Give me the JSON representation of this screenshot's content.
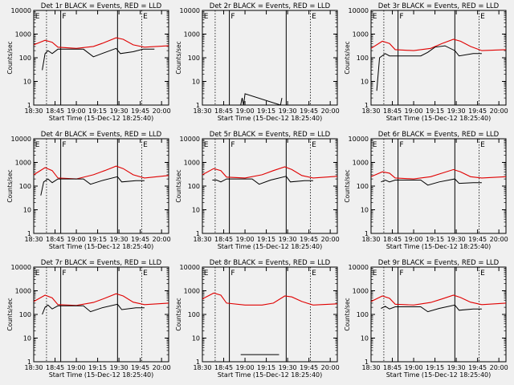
{
  "figure": {
    "colors": {
      "events": "#000000",
      "lld": "#e00000",
      "background": "#f0f0f0"
    },
    "x_tick_labels": [
      "18:30",
      "18:45",
      "19:00",
      "19:15",
      "19:30",
      "19:45",
      "20:00"
    ],
    "x_label": "Start Time (15-Dec-12 18:25:40)",
    "y_label": "Counts/sec",
    "marker_letters": [
      "E",
      "F",
      "E"
    ]
  },
  "chart_data": [
    {
      "type": "line",
      "title": "Det 1r BLACK = Events, RED = LLD",
      "xlabel": "Start Time (15-Dec-12 18:25:40)",
      "ylabel": "Counts/sec",
      "x_unit": "HH:MM",
      "y_scale": "log",
      "yticks": [
        "1",
        "10",
        "100",
        "1000",
        "10000"
      ],
      "series": [
        {
          "name": "Events",
          "color": "#000000",
          "x": [
            "18:36",
            "18:38",
            "18:40",
            "18:43",
            "18:47",
            "18:50",
            "19:05",
            "19:12",
            "19:18",
            "19:28",
            "19:31",
            "19:40",
            "19:47",
            "19:55"
          ],
          "y": [
            30,
            150,
            200,
            150,
            230,
            230,
            230,
            110,
            150,
            250,
            150,
            180,
            230,
            230
          ]
        },
        {
          "name": "LLD",
          "color": "#e00000",
          "x": [
            "18:30",
            "18:38",
            "18:43",
            "18:47",
            "19:00",
            "19:12",
            "19:18",
            "19:28",
            "19:33",
            "19:40",
            "19:48",
            "20:05"
          ],
          "y": [
            350,
            550,
            450,
            280,
            250,
            300,
            400,
            700,
            600,
            350,
            280,
            320
          ]
        }
      ]
    },
    {
      "type": "line",
      "title": "Det 2r BLACK = Events, RED = LLD",
      "xlabel": "Start Time (15-Dec-12 18:25:40)",
      "ylabel": "Counts/sec",
      "x_unit": "HH:MM",
      "y_scale": "log",
      "yticks": [
        "1",
        "10",
        "100",
        "1000",
        "10000"
      ],
      "series": [
        {
          "name": "Events",
          "color": "#000000",
          "x": [
            "18:57",
            "18:58",
            "18:59",
            "19:00",
            "19:25",
            "19:26"
          ],
          "y": [
            1,
            2,
            1,
            3,
            1,
            2
          ]
        }
      ]
    },
    {
      "type": "line",
      "title": "Det 3r BLACK = Events, RED = LLD",
      "xlabel": "Start Time (15-Dec-12 18:25:40)",
      "ylabel": "Counts/sec",
      "x_unit": "HH:MM",
      "y_scale": "log",
      "yticks": [
        "1",
        "10",
        "100",
        "1000",
        "10000"
      ],
      "series": [
        {
          "name": "Events",
          "color": "#000000",
          "x": [
            "18:34",
            "18:36",
            "18:40",
            "18:43",
            "18:47",
            "19:05",
            "19:10",
            "19:15",
            "19:22",
            "19:29",
            "19:32",
            "19:42",
            "19:48"
          ],
          "y": [
            4,
            100,
            150,
            120,
            120,
            120,
            170,
            280,
            320,
            200,
            120,
            150,
            150
          ]
        },
        {
          "name": "LLD",
          "color": "#e00000",
          "x": [
            "18:30",
            "18:38",
            "18:43",
            "18:47",
            "19:00",
            "19:12",
            "19:20",
            "19:28",
            "19:33",
            "19:40",
            "19:48",
            "20:05"
          ],
          "y": [
            250,
            500,
            400,
            220,
            200,
            250,
            400,
            600,
            500,
            300,
            200,
            220
          ]
        }
      ]
    },
    {
      "type": "line",
      "title": "Det 4r BLACK = Events, RED = LLD",
      "xlabel": "Start Time (15-Dec-12 18:25:40)",
      "ylabel": "Counts/sec",
      "x_unit": "HH:MM",
      "y_scale": "log",
      "yticks": [
        "1",
        "10",
        "100",
        "1000",
        "10000"
      ],
      "series": [
        {
          "name": "Events",
          "color": "#000000",
          "x": [
            "18:35",
            "18:37",
            "18:40",
            "18:43",
            "18:47",
            "19:05",
            "19:10",
            "19:18",
            "19:29",
            "19:32",
            "19:42",
            "19:48"
          ],
          "y": [
            40,
            150,
            200,
            140,
            200,
            200,
            120,
            170,
            250,
            150,
            170,
            170
          ]
        },
        {
          "name": "LLD",
          "color": "#e00000",
          "x": [
            "18:30",
            "18:38",
            "18:43",
            "18:47",
            "19:00",
            "19:12",
            "19:20",
            "19:28",
            "19:33",
            "19:40",
            "19:48",
            "20:05"
          ],
          "y": [
            300,
            600,
            450,
            220,
            200,
            300,
            450,
            700,
            550,
            300,
            220,
            280
          ]
        }
      ]
    },
    {
      "type": "line",
      "title": "Det 5r BLACK = Events, RED = LLD",
      "xlabel": "Start Time (15-Dec-12 18:25:40)",
      "ylabel": "Counts/sec",
      "x_unit": "HH:MM",
      "y_scale": "log",
      "yticks": [
        "1",
        "10",
        "100",
        "1000",
        "10000"
      ],
      "series": [
        {
          "name": "Events",
          "color": "#000000",
          "x": [
            "18:37",
            "18:40",
            "18:43",
            "18:47",
            "19:05",
            "19:10",
            "19:18",
            "19:29",
            "19:32",
            "19:42",
            "19:48"
          ],
          "y": [
            180,
            180,
            150,
            200,
            200,
            120,
            180,
            260,
            150,
            170,
            170
          ]
        },
        {
          "name": "LLD",
          "color": "#e00000",
          "x": [
            "18:30",
            "18:38",
            "18:43",
            "18:47",
            "19:00",
            "19:12",
            "19:20",
            "19:28",
            "19:33",
            "19:40",
            "19:48",
            "20:05"
          ],
          "y": [
            300,
            550,
            450,
            240,
            220,
            300,
            450,
            650,
            500,
            280,
            220,
            260
          ]
        }
      ]
    },
    {
      "type": "line",
      "title": "Det 6r BLACK = Events, RED = LLD",
      "xlabel": "Start Time (15-Dec-12 18:25:40)",
      "ylabel": "Counts/sec",
      "x_unit": "HH:MM",
      "y_scale": "log",
      "yticks": [
        "1",
        "10",
        "100",
        "1000",
        "10000"
      ],
      "series": [
        {
          "name": "Events",
          "color": "#000000",
          "x": [
            "18:37",
            "18:40",
            "18:43",
            "18:47",
            "19:05",
            "19:10",
            "19:18",
            "19:29",
            "19:32",
            "19:42",
            "19:48"
          ],
          "y": [
            150,
            180,
            150,
            180,
            180,
            110,
            150,
            200,
            130,
            140,
            140
          ]
        },
        {
          "name": "LLD",
          "color": "#e00000",
          "x": [
            "18:30",
            "18:38",
            "18:43",
            "18:47",
            "19:00",
            "19:12",
            "19:20",
            "19:28",
            "19:33",
            "19:40",
            "19:48",
            "20:05"
          ],
          "y": [
            250,
            400,
            350,
            220,
            200,
            250,
            350,
            500,
            400,
            250,
            220,
            250
          ]
        }
      ]
    },
    {
      "type": "line",
      "title": "Det 7r BLACK = Events, RED = LLD",
      "xlabel": "Start Time (15-Dec-12 18:25:40)",
      "ylabel": "Counts/sec",
      "x_unit": "HH:MM",
      "y_scale": "log",
      "yticks": [
        "1",
        "10",
        "100",
        "1000",
        "10000"
      ],
      "series": [
        {
          "name": "Events",
          "color": "#000000",
          "x": [
            "18:36",
            "18:38",
            "18:40",
            "18:43",
            "18:47",
            "19:05",
            "19:10",
            "19:18",
            "19:29",
            "19:32",
            "19:42",
            "19:48"
          ],
          "y": [
            100,
            200,
            250,
            170,
            230,
            230,
            130,
            190,
            270,
            160,
            190,
            190
          ]
        },
        {
          "name": "LLD",
          "color": "#e00000",
          "x": [
            "18:30",
            "18:38",
            "18:43",
            "18:47",
            "19:00",
            "19:12",
            "19:20",
            "19:28",
            "19:33",
            "19:40",
            "19:48",
            "20:05"
          ],
          "y": [
            350,
            650,
            500,
            260,
            240,
            320,
            480,
            750,
            600,
            330,
            260,
            300
          ]
        }
      ]
    },
    {
      "type": "line",
      "title": "Det 8r BLACK = Events, RED = LLD",
      "xlabel": "Start Time (15-Dec-12 18:25:40)",
      "ylabel": "Counts/sec",
      "x_unit": "HH:MM",
      "y_scale": "log",
      "yticks": [
        "1",
        "10",
        "100",
        "1000",
        "10000"
      ],
      "series": [
        {
          "name": "Events",
          "color": "#000000",
          "x": [
            "18:57",
            "18:58",
            "19:24"
          ],
          "y": [
            2,
            2,
            2
          ]
        },
        {
          "name": "LLD",
          "color": "#e00000",
          "x": [
            "18:30",
            "18:38",
            "18:43",
            "18:47",
            "19:00",
            "19:12",
            "19:20",
            "19:28",
            "19:33",
            "19:40",
            "19:48",
            "20:05"
          ],
          "y": [
            450,
            800,
            650,
            300,
            250,
            250,
            300,
            600,
            550,
            350,
            250,
            280
          ]
        }
      ]
    },
    {
      "type": "line",
      "title": "Det 9r BLACK = Events, RED = LLD",
      "xlabel": "Start Time (15-Dec-12 18:25:40)",
      "ylabel": "Counts/sec",
      "x_unit": "HH:MM",
      "y_scale": "log",
      "yticks": [
        "1",
        "10",
        "100",
        "1000",
        "10000"
      ],
      "series": [
        {
          "name": "Events",
          "color": "#000000",
          "x": [
            "18:37",
            "18:40",
            "18:43",
            "18:47",
            "19:05",
            "19:10",
            "19:18",
            "19:29",
            "19:32",
            "19:42",
            "19:48"
          ],
          "y": [
            180,
            220,
            170,
            210,
            210,
            130,
            180,
            250,
            150,
            170,
            170
          ]
        },
        {
          "name": "LLD",
          "color": "#e00000",
          "x": [
            "18:30",
            "18:38",
            "18:43",
            "18:47",
            "19:00",
            "19:12",
            "19:20",
            "19:28",
            "19:33",
            "19:40",
            "19:48",
            "20:05"
          ],
          "y": [
            350,
            600,
            480,
            270,
            250,
            320,
            450,
            650,
            520,
            330,
            260,
            300
          ]
        }
      ]
    }
  ]
}
